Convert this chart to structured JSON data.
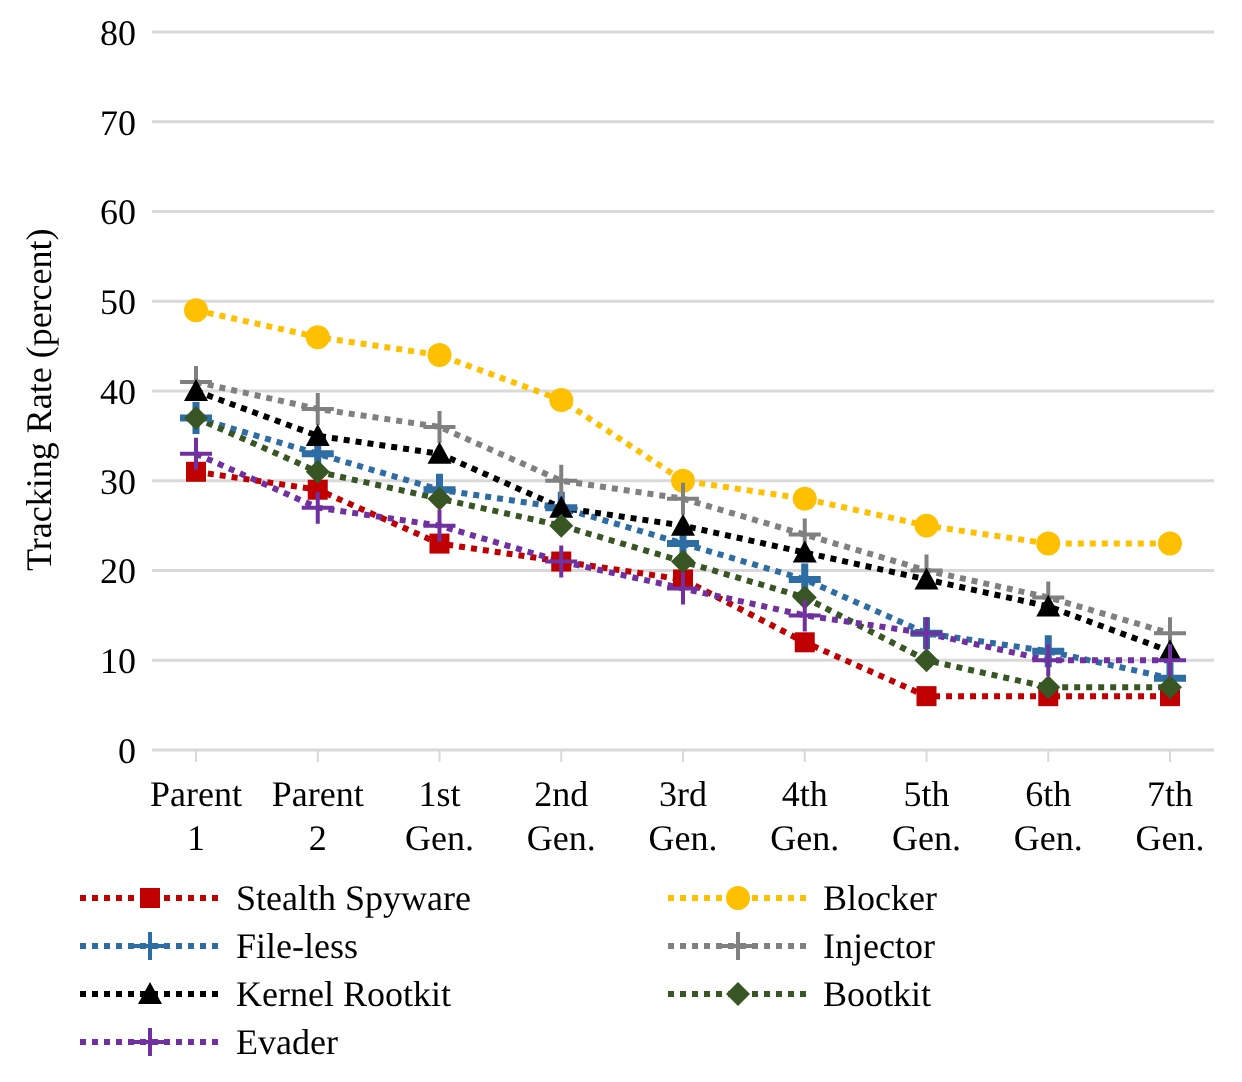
{
  "chart_data": {
    "type": "line",
    "ylabel": "Tracking Rate (percent)",
    "categories": [
      "Parent 1",
      "Parent 2",
      "1st Gen.",
      "2nd Gen.",
      "3rd Gen.",
      "4th Gen.",
      "5th Gen.",
      "6th Gen.",
      "7th Gen."
    ],
    "ylim": [
      0,
      80
    ],
    "yticks": [
      0,
      10,
      20,
      30,
      40,
      50,
      60,
      70,
      80
    ],
    "grid": "y",
    "legend": "bottom",
    "line_style": "dotted",
    "series": [
      {
        "name": "Stealth Spyware",
        "color": "#c00000",
        "marker": "square",
        "values": [
          31,
          29,
          23,
          21,
          19,
          12,
          6,
          6,
          6
        ]
      },
      {
        "name": "Blocker",
        "color": "#ffc000",
        "marker": "circle",
        "values": [
          49,
          46,
          44,
          39,
          30,
          28,
          25,
          23,
          23
        ]
      },
      {
        "name": "File-less",
        "color": "#2e6da4",
        "marker": "cross",
        "values": [
          37,
          33,
          29,
          27,
          23,
          19,
          13,
          11,
          8
        ]
      },
      {
        "name": "Injector",
        "color": "#808080",
        "marker": "cross",
        "values": [
          41,
          38,
          36,
          30,
          28,
          24,
          20,
          17,
          13
        ]
      },
      {
        "name": "Kernel Rootkit",
        "color": "#000000",
        "marker": "triangle",
        "values": [
          40,
          35,
          33,
          27,
          25,
          22,
          19,
          16,
          11
        ]
      },
      {
        "name": "Bootkit",
        "color": "#375623",
        "marker": "diamond",
        "values": [
          37,
          31,
          28,
          25,
          21,
          17,
          10,
          7,
          7
        ]
      },
      {
        "name": "Evader",
        "color": "#7030a0",
        "marker": "cross",
        "values": [
          33,
          27,
          25,
          21,
          18,
          15,
          13,
          10,
          10
        ]
      }
    ]
  }
}
